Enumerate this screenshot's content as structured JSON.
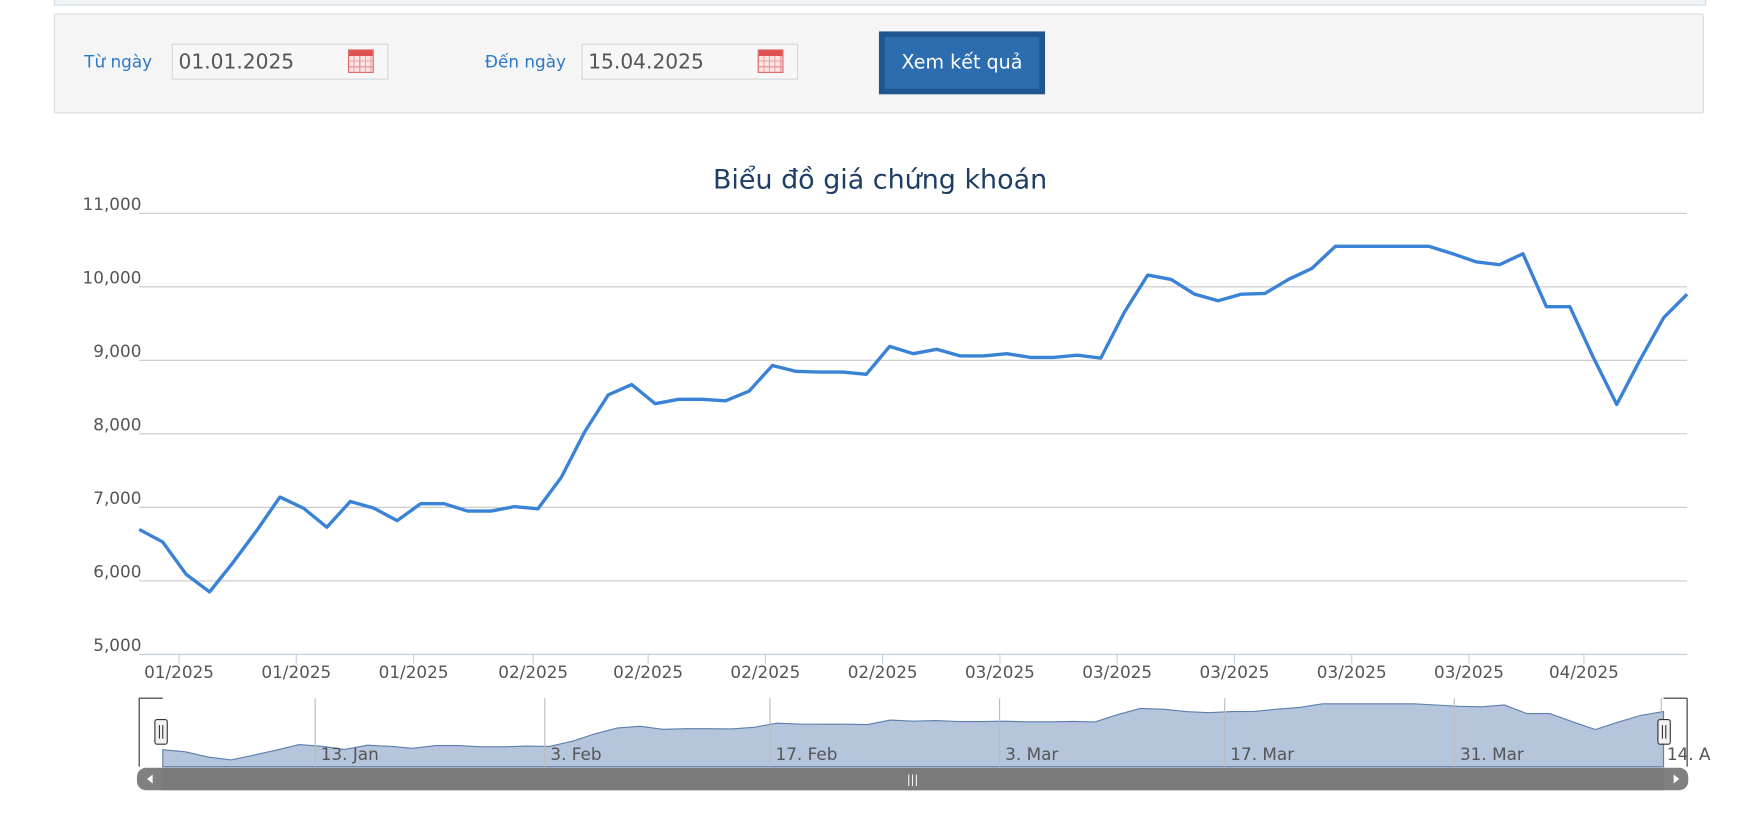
{
  "form": {
    "from_label": "Từ ngày",
    "from_value": "01.01.2025",
    "to_label": "Đến ngày",
    "to_value": "15.04.2025",
    "button": "Xem kết quả"
  },
  "chart_data": {
    "type": "line",
    "title": "Biểu đồ giá chứng khoán",
    "color": "#3a82d6",
    "grid": true,
    "values": [
      6700,
      6530,
      6090,
      5850,
      6250,
      6680,
      7140,
      6990,
      6730,
      7080,
      6990,
      6820,
      7050,
      7050,
      6950,
      6950,
      7010,
      6980,
      7410,
      8030,
      8530,
      8670,
      8410,
      8470,
      8470,
      8450,
      8580,
      8930,
      8850,
      8840,
      8840,
      8810,
      9190,
      9090,
      9150,
      9060,
      9060,
      9090,
      9040,
      9040,
      9070,
      9030,
      9650,
      10160,
      10100,
      9900,
      9810,
      9900,
      9910,
      10100,
      10250,
      10550,
      10550,
      10550,
      10550,
      10550,
      10450,
      10340,
      10300,
      10450,
      9730,
      9730,
      9040,
      8400,
      9010,
      9580,
      9900
    ],
    "ylim": [
      5000,
      11000
    ],
    "yticks": [
      {
        "value": 5000,
        "label": "5,000"
      },
      {
        "value": 6000,
        "label": "6,000"
      },
      {
        "value": 7000,
        "label": "7,000"
      },
      {
        "value": 8000,
        "label": "8,000"
      },
      {
        "value": 9000,
        "label": "9,000"
      },
      {
        "value": 10000,
        "label": "10,000"
      },
      {
        "value": 11000,
        "label": "11,000"
      }
    ],
    "xlim": [
      0,
      66
    ],
    "xticks": [
      {
        "value": 1.7,
        "label": "01/2025"
      },
      {
        "value": 6.7,
        "label": "01/2025"
      },
      {
        "value": 11.7,
        "label": "01/2025"
      },
      {
        "value": 16.8,
        "label": "02/2025"
      },
      {
        "value": 21.7,
        "label": "02/2025"
      },
      {
        "value": 26.7,
        "label": "02/2025"
      },
      {
        "value": 31.7,
        "label": "02/2025"
      },
      {
        "value": 36.7,
        "label": "03/2025"
      },
      {
        "value": 41.7,
        "label": "03/2025"
      },
      {
        "value": 46.7,
        "label": "03/2025"
      },
      {
        "value": 51.7,
        "label": "03/2025"
      },
      {
        "value": 56.7,
        "label": "03/2025"
      },
      {
        "value": 61.6,
        "label": "04/2025"
      }
    ],
    "navigator_ticks": [
      {
        "value": 6.7,
        "label": "13. Jan"
      },
      {
        "value": 16.8,
        "label": "3. Feb"
      },
      {
        "value": 26.7,
        "label": "17. Feb"
      },
      {
        "value": 36.8,
        "label": "3. Mar"
      },
      {
        "value": 46.7,
        "label": "17. Mar"
      },
      {
        "value": 56.8,
        "label": "31. Mar"
      },
      {
        "value": 65.9,
        "label": "14. A"
      }
    ]
  }
}
